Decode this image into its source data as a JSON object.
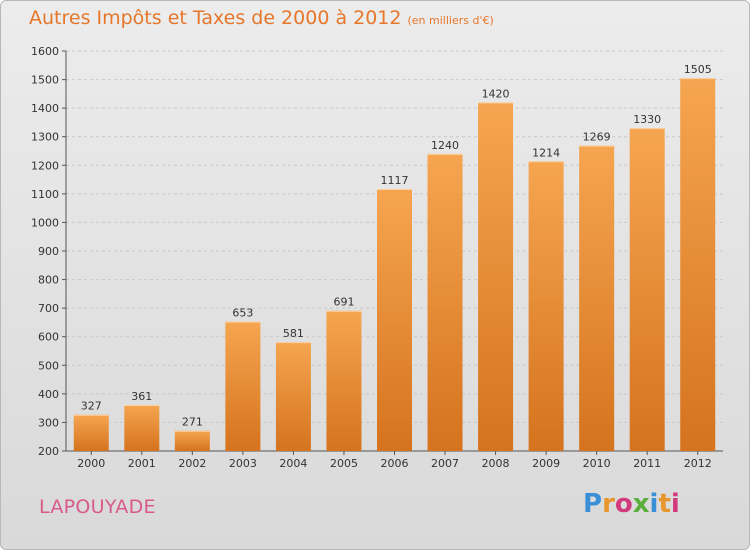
{
  "header": {
    "title": "Autres Impôts et Taxes de 2000 à 2012",
    "subtitle": "(en milliers d'€)"
  },
  "commune": "LAPOUYADE",
  "logo": {
    "text": "Proxiti",
    "colors": [
      "#3a8fd6",
      "#e8962b",
      "#d23a7e",
      "#5aae3c",
      "#3a8fd6",
      "#e8962b",
      "#d23a7e"
    ]
  },
  "colors": {
    "bar_light": "#f6a550",
    "bar_dark": "#d5731e",
    "accent": "#e6772a",
    "commune": "#d85a8a",
    "grid": "#c8c8c8"
  },
  "chart_data": {
    "type": "bar",
    "categories": [
      "2000",
      "2001",
      "2002",
      "2003",
      "2004",
      "2005",
      "2006",
      "2007",
      "2008",
      "2009",
      "2010",
      "2011",
      "2012"
    ],
    "values": [
      327,
      361,
      271,
      653,
      581,
      691,
      1117,
      1240,
      1420,
      1214,
      1269,
      1330,
      1505
    ],
    "ylim": [
      200,
      1600
    ],
    "yticks": [
      200,
      300,
      400,
      500,
      600,
      700,
      800,
      900,
      1000,
      1100,
      1200,
      1300,
      1400,
      1500,
      1600
    ],
    "grid": true
  }
}
